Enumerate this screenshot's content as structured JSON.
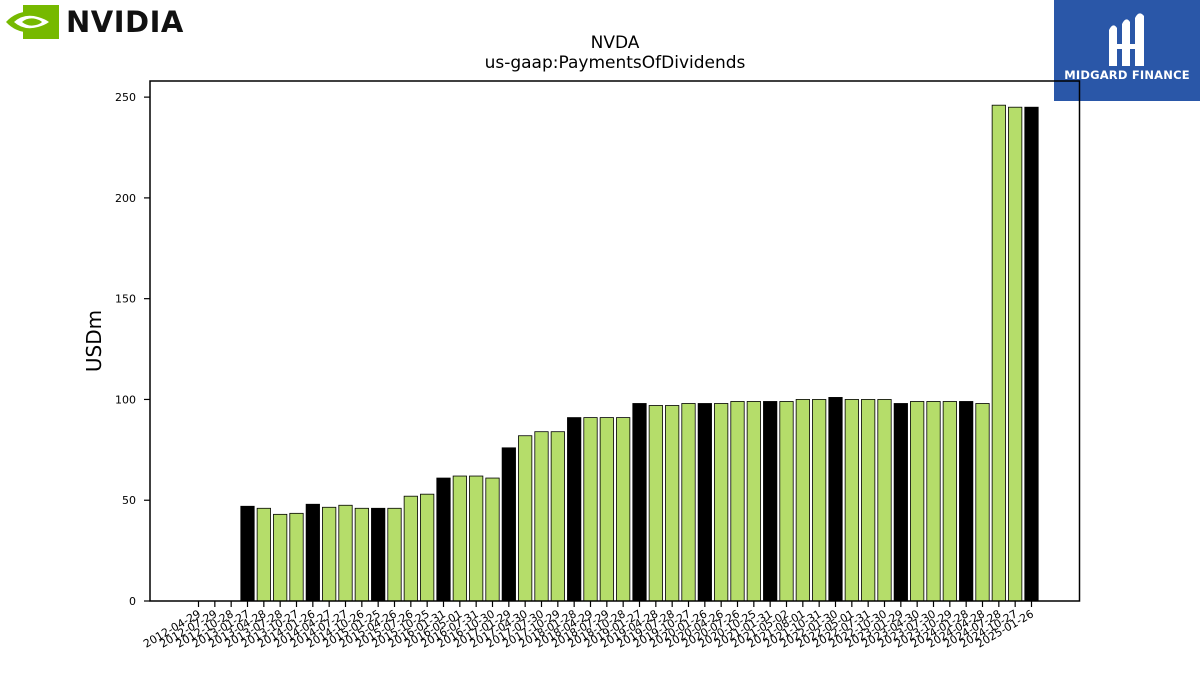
{
  "brand": {
    "company_name": "NVIDIA",
    "company_logo_icon": "nvidia-eye-logo-icon",
    "company_color": "#76b900",
    "publisher_name": "MIDGARD FINANCE",
    "publisher_logo_icon": "midgard-finance-logo-icon",
    "publisher_color": "#2a57a8"
  },
  "chart_data": {
    "type": "bar",
    "title": "NVDA",
    "subtitle": "us-gaap:PaymentsOfDividends",
    "xlabel": "",
    "ylabel": "USDm",
    "ylim": [
      0,
      258
    ],
    "yticks": [
      0,
      50,
      100,
      150,
      200,
      250
    ],
    "grid": false,
    "legend": "none",
    "colors": {
      "quarter": "#b5dd6a",
      "fiscal_year_end": "#000000",
      "edge": "#000000"
    },
    "categories": [
      "2012-04-29",
      "2012-07-29",
      "2012-10-28",
      "2013-01-27",
      "2013-04-28",
      "2013-07-28",
      "2013-10-27",
      "2014-01-26",
      "2014-04-27",
      "2014-07-27",
      "2014-10-26",
      "2015-01-25",
      "2015-04-26",
      "2015-07-26",
      "2015-10-25",
      "2016-01-31",
      "2016-05-01",
      "2016-07-31",
      "2016-10-30",
      "2017-01-29",
      "2017-04-30",
      "2017-07-30",
      "2017-10-29",
      "2018-01-28",
      "2018-04-29",
      "2018-07-29",
      "2018-10-28",
      "2019-01-27",
      "2019-04-28",
      "2019-07-28",
      "2019-10-27",
      "2020-01-26",
      "2020-04-26",
      "2020-07-26",
      "2020-10-25",
      "2021-01-31",
      "2021-05-02",
      "2021-08-01",
      "2021-10-31",
      "2022-01-30",
      "2022-05-01",
      "2022-07-31",
      "2022-10-30",
      "2023-01-29",
      "2023-04-30",
      "2023-07-30",
      "2023-10-29",
      "2024-01-28",
      "2024-04-28",
      "2024-07-28",
      "2024-10-27",
      "2025-01-26"
    ],
    "values": [
      0,
      0,
      0,
      47,
      46,
      43,
      43.5,
      48,
      46.5,
      47.5,
      46,
      46,
      46,
      52,
      53,
      61,
      62,
      62,
      61,
      76,
      82,
      84,
      84,
      91,
      91,
      91,
      91,
      98,
      97,
      97,
      98,
      98,
      98,
      99,
      99,
      99,
      99,
      100,
      100,
      101,
      100,
      100,
      100,
      98,
      99,
      99,
      99,
      99,
      98,
      246,
      245,
      245
    ],
    "fiscal_year_end": [
      false,
      false,
      false,
      true,
      false,
      false,
      false,
      true,
      false,
      false,
      false,
      true,
      false,
      false,
      false,
      true,
      false,
      false,
      false,
      true,
      false,
      false,
      false,
      true,
      false,
      false,
      false,
      true,
      false,
      false,
      false,
      true,
      false,
      false,
      false,
      true,
      false,
      false,
      false,
      true,
      false,
      false,
      false,
      true,
      false,
      false,
      false,
      true,
      false,
      false,
      false,
      true
    ]
  }
}
